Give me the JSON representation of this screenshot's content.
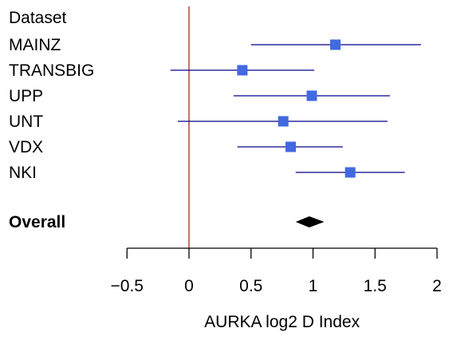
{
  "chart_data": {
    "type": "forest",
    "header": "Dataset",
    "xlabel": "AURKA log2 D Index",
    "xlim": [
      -0.5,
      2
    ],
    "xticks": [
      "-0.5",
      "0",
      "0.5",
      "1",
      "1.5",
      "2"
    ],
    "xtick_values": [
      -0.5,
      0,
      0.5,
      1,
      1.5,
      2
    ],
    "reference_line": 0,
    "studies": [
      {
        "label": "MAINZ",
        "estimate": 1.18,
        "lower": 0.5,
        "upper": 1.87
      },
      {
        "label": "TRANSBIG",
        "estimate": 0.43,
        "lower": -0.15,
        "upper": 1.01
      },
      {
        "label": "UPP",
        "estimate": 0.99,
        "lower": 0.36,
        "upper": 1.62
      },
      {
        "label": "UNT",
        "estimate": 0.76,
        "lower": -0.09,
        "upper": 1.6
      },
      {
        "label": "VDX",
        "estimate": 0.82,
        "lower": 0.39,
        "upper": 1.24
      },
      {
        "label": "NKI",
        "estimate": 1.3,
        "lower": 0.86,
        "upper": 1.74
      }
    ],
    "overall": {
      "label": "Overall",
      "estimate": 0.97,
      "lower": 0.86,
      "upper": 1.09
    },
    "colors": {
      "study_marker": "#4169E1",
      "ci_line": "#00008B",
      "overall_diamond": "#000000",
      "reference_line": "#B22222"
    }
  }
}
